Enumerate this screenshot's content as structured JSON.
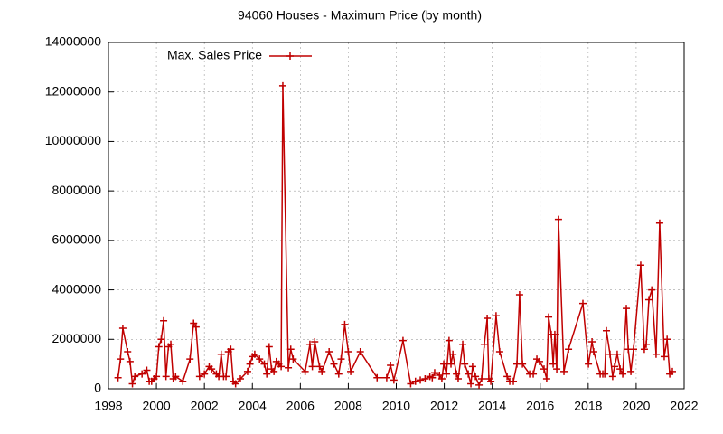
{
  "chart_data": {
    "type": "line",
    "title": "94060 Houses - Maximum Price (by month)",
    "x": [
      1998.4,
      1998.5,
      1998.6,
      1998.8,
      1998.9,
      1999.0,
      1999.1,
      1999.4,
      1999.6,
      1999.7,
      1999.8,
      1999.9,
      2000.0,
      2000.1,
      2000.2,
      2000.3,
      2000.4,
      2000.5,
      2000.6,
      2000.7,
      2000.8,
      2001.1,
      2001.4,
      2001.55,
      2001.65,
      2001.8,
      2002.0,
      2002.2,
      2002.3,
      2002.5,
      2002.6,
      2002.7,
      2002.8,
      2002.9,
      2003.0,
      2003.1,
      2003.2,
      2003.3,
      2003.5,
      2003.8,
      2003.9,
      2004.0,
      2004.1,
      2004.3,
      2004.5,
      2004.6,
      2004.7,
      2004.8,
      2004.9,
      2005.0,
      2005.1,
      2005.2,
      2005.27,
      2005.5,
      2005.6,
      2005.7,
      2006.2,
      2006.4,
      2006.5,
      2006.6,
      2006.8,
      2006.9,
      2007.2,
      2007.4,
      2007.6,
      2007.7,
      2007.85,
      2008.0,
      2008.1,
      2008.5,
      2009.2,
      2009.6,
      2009.76,
      2009.9,
      2010.28,
      2010.6,
      2010.8,
      2011.0,
      2011.2,
      2011.4,
      2011.5,
      2011.6,
      2011.8,
      2011.9,
      2011.98,
      2012.09,
      2012.2,
      2012.28,
      2012.36,
      2012.51,
      2012.58,
      2012.77,
      2012.85,
      2013.0,
      2013.11,
      2013.18,
      2013.3,
      2013.45,
      2013.56,
      2013.67,
      2013.79,
      2013.86,
      2013.94,
      2014.16,
      2014.31,
      2014.62,
      2014.73,
      2014.88,
      2015.03,
      2015.14,
      2015.26,
      2015.56,
      2015.71,
      2015.86,
      2015.97,
      2016.16,
      2016.27,
      2016.35,
      2016.46,
      2016.54,
      2016.61,
      2016.69,
      2016.76,
      2016.99,
      2017.18,
      2017.78,
      2018.01,
      2018.16,
      2018.23,
      2018.5,
      2018.61,
      2018.69,
      2018.76,
      2018.91,
      2019.02,
      2019.1,
      2019.21,
      2019.33,
      2019.44,
      2019.59,
      2019.67,
      2019.78,
      2019.89,
      2020.19,
      2020.34,
      2020.42,
      2020.53,
      2020.65,
      2020.83,
      2020.98,
      2021.17,
      2021.29,
      2021.4,
      2021.51
    ],
    "series": [
      {
        "name": "Max. Sales Price",
        "color": "#c00000",
        "values": [
          450000,
          1200000,
          2450000,
          1500000,
          1100000,
          200000,
          500000,
          600000,
          750000,
          300000,
          300000,
          400000,
          500000,
          1700000,
          2000000,
          2750000,
          500000,
          1700000,
          1800000,
          400000,
          500000,
          300000,
          1200000,
          2650000,
          2500000,
          500000,
          600000,
          900000,
          800000,
          600000,
          500000,
          1400000,
          500000,
          500000,
          1500000,
          1600000,
          300000,
          200000,
          400000,
          700000,
          1000000,
          1300000,
          1400000,
          1200000,
          1000000,
          600000,
          1700000,
          800000,
          700000,
          1100000,
          1000000,
          900000,
          12250000,
          850000,
          1600000,
          1200000,
          700000,
          1800000,
          900000,
          1900000,
          900000,
          700000,
          1500000,
          1000000,
          600000,
          1200000,
          2600000,
          1500000,
          700000,
          1500000,
          450000,
          450000,
          950000,
          350000,
          1950000,
          200000,
          300000,
          350000,
          400000,
          500000,
          450000,
          650000,
          550000,
          400000,
          1000000,
          600000,
          1950000,
          1000000,
          1400000,
          600000,
          400000,
          1800000,
          1000000,
          600000,
          200000,
          900000,
          500000,
          150000,
          400000,
          1800000,
          2850000,
          400000,
          300000,
          2950000,
          1500000,
          500000,
          300000,
          300000,
          1000000,
          3800000,
          1000000,
          600000,
          600000,
          1200000,
          1100000,
          800000,
          400000,
          2900000,
          2200000,
          1000000,
          2200000,
          800000,
          6850000,
          700000,
          1600000,
          3450000,
          1000000,
          1900000,
          1500000,
          600000,
          600000,
          600000,
          2350000,
          1400000,
          500000,
          900000,
          1400000,
          800000,
          600000,
          3250000,
          1600000,
          700000,
          1600000,
          5000000,
          1600000,
          1800000,
          3600000,
          4000000,
          1400000,
          6700000,
          1300000,
          2000000,
          600000,
          700000
        ]
      }
    ],
    "xlim": [
      1998,
      2022
    ],
    "xticks": [
      1998,
      2000,
      2002,
      2004,
      2006,
      2008,
      2010,
      2012,
      2014,
      2016,
      2018,
      2020,
      2022
    ],
    "ylim": [
      0,
      14000000
    ],
    "yticks": [
      0,
      2000000,
      4000000,
      6000000,
      8000000,
      10000000,
      12000000,
      14000000
    ],
    "grid": true,
    "legend": "top-left"
  }
}
